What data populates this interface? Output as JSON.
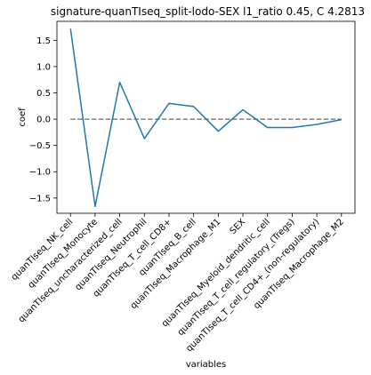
{
  "chart_data": {
    "type": "line",
    "title": "signature-quanTIseq_split-lodo-SEX l1_ratio 0.45, C 4.2813",
    "xlabel": "variables",
    "ylabel": "coef",
    "categories": [
      "quanTIseq_NK_cell",
      "quanTIseq_Monocyte",
      "quanTIseq_uncharacterized_cell",
      "quanTIseq_Neutrophil",
      "quanTIseq_T_cell_CD8+",
      "quanTIseq_B_cell",
      "quanTIseq_Macrophage_M1",
      "SEX",
      "quanTIseq_Myeloid_dendritic_cell",
      "quanTIseq_T_cell_regulatory_(Tregs)",
      "quanTIseq_T_cell_CD4+_(non-regulatory)",
      "quanTIseq_Macrophage_M2"
    ],
    "series": [
      {
        "values": [
          1.72,
          -1.66,
          0.7,
          -0.37,
          0.3,
          0.24,
          -0.23,
          0.18,
          -0.16,
          -0.16,
          -0.1,
          -0.01
        ],
        "color": "#1f77b4"
      }
    ],
    "reference_line": {
      "y": 0,
      "style": "dashed",
      "color": "#808080"
    },
    "ylim": [
      -1.79,
      1.86
    ],
    "yticks": [
      -1.5,
      -1.0,
      -0.5,
      0.0,
      0.5,
      1.0,
      1.5
    ],
    "ytick_labels": [
      "−1.5",
      "−1.0",
      "−0.5",
      "0.0",
      "0.5",
      "1.0",
      "1.5"
    ],
    "grid": false,
    "legend": "none"
  }
}
